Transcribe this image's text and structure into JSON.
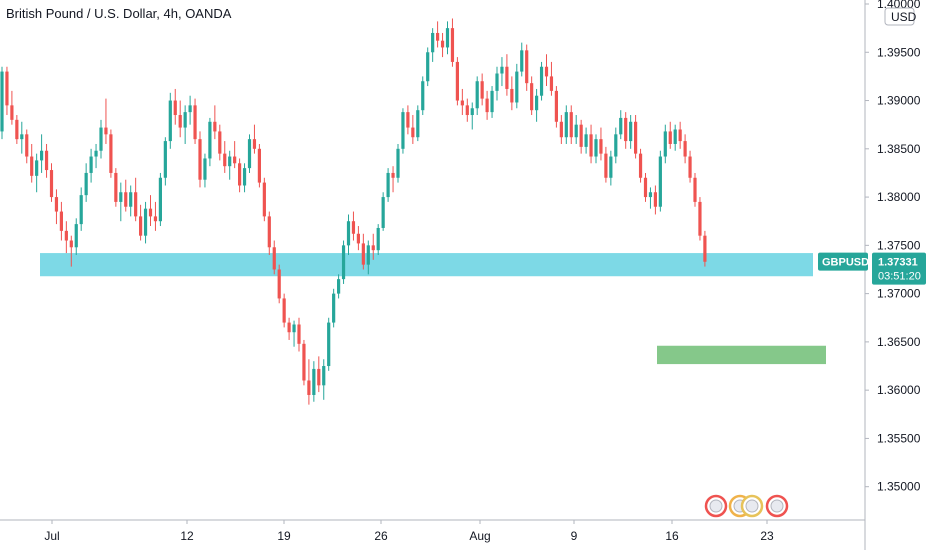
{
  "chart_data": {
    "type": "candlestick",
    "title": "British Pound / U.S. Dollar, 4h, OANDA",
    "symbol": "GBPUSD",
    "currency": "USD",
    "last_price": "1.37331",
    "countdown": "03:51:20",
    "y_ticks": [
      "1.40000",
      "1.39500",
      "1.39000",
      "1.38500",
      "1.38000",
      "1.37500",
      "1.37000",
      "1.36500",
      "1.36000",
      "1.35500",
      "1.35000"
    ],
    "ylim": [
      1.348,
      1.4
    ],
    "x_ticks": [
      "Jul",
      "12",
      "19",
      "26",
      "Aug",
      "9",
      "16",
      "23"
    ],
    "colors": {
      "up": "#26a69a",
      "down": "#ef5350",
      "last": "#26a69a"
    },
    "candles": [
      [
        1.3868,
        1.3935,
        1.386,
        1.393
      ],
      [
        1.393,
        1.3935,
        1.3885,
        1.3895
      ],
      [
        1.3895,
        1.391,
        1.3875,
        1.388
      ],
      [
        1.388,
        1.3885,
        1.3855,
        1.386
      ],
      [
        1.386,
        1.3878,
        1.3845,
        1.3865
      ],
      [
        1.3865,
        1.387,
        1.3835,
        1.3842
      ],
      [
        1.3842,
        1.3855,
        1.3815,
        1.3822
      ],
      [
        1.3822,
        1.3845,
        1.3805,
        1.3838
      ],
      [
        1.3838,
        1.3865,
        1.3825,
        1.3848
      ],
      [
        1.3848,
        1.3855,
        1.382,
        1.3828
      ],
      [
        1.3828,
        1.3835,
        1.3795,
        1.38
      ],
      [
        1.38,
        1.3808,
        1.3772,
        1.3785
      ],
      [
        1.3785,
        1.3795,
        1.3755,
        1.3765
      ],
      [
        1.3765,
        1.3775,
        1.3742,
        1.3755
      ],
      [
        1.3755,
        1.376,
        1.3728,
        1.3748
      ],
      [
        1.3748,
        1.3778,
        1.374,
        1.3772
      ],
      [
        1.3772,
        1.381,
        1.3765,
        1.3802
      ],
      [
        1.3802,
        1.3835,
        1.3795,
        1.3825
      ],
      [
        1.3825,
        1.385,
        1.3815,
        1.3842
      ],
      [
        1.3842,
        1.3855,
        1.383,
        1.3848
      ],
      [
        1.3848,
        1.388,
        1.384,
        1.3872
      ],
      [
        1.3872,
        1.3902,
        1.3855,
        1.3865
      ],
      [
        1.3865,
        1.387,
        1.382,
        1.3825
      ],
      [
        1.3825,
        1.383,
        1.379,
        1.3795
      ],
      [
        1.3795,
        1.3815,
        1.3775,
        1.3805
      ],
      [
        1.3805,
        1.3818,
        1.3785,
        1.379
      ],
      [
        1.379,
        1.3812,
        1.378,
        1.3805
      ],
      [
        1.3805,
        1.382,
        1.3775,
        1.378
      ],
      [
        1.378,
        1.3792,
        1.3755,
        1.376
      ],
      [
        1.376,
        1.3795,
        1.3752,
        1.3788
      ],
      [
        1.3788,
        1.3802,
        1.377,
        1.378
      ],
      [
        1.378,
        1.3795,
        1.3765,
        1.3775
      ],
      [
        1.3775,
        1.3825,
        1.377,
        1.382
      ],
      [
        1.382,
        1.3862,
        1.3812,
        1.3858
      ],
      [
        1.3858,
        1.3908,
        1.385,
        1.39
      ],
      [
        1.39,
        1.3912,
        1.3875,
        1.3885
      ],
      [
        1.3885,
        1.39,
        1.3862,
        1.3872
      ],
      [
        1.3872,
        1.3895,
        1.3855,
        1.3888
      ],
      [
        1.3888,
        1.3905,
        1.3875,
        1.3895
      ],
      [
        1.3895,
        1.3902,
        1.3855,
        1.386
      ],
      [
        1.386,
        1.3868,
        1.381,
        1.3818
      ],
      [
        1.3818,
        1.3845,
        1.381,
        1.384
      ],
      [
        1.384,
        1.3882,
        1.3832,
        1.3878
      ],
      [
        1.3878,
        1.3895,
        1.386,
        1.3868
      ],
      [
        1.3868,
        1.3875,
        1.3838,
        1.3845
      ],
      [
        1.3845,
        1.3858,
        1.3825,
        1.3832
      ],
      [
        1.3832,
        1.3848,
        1.3818,
        1.3842
      ],
      [
        1.3842,
        1.3858,
        1.383,
        1.3835
      ],
      [
        1.3835,
        1.384,
        1.3805,
        1.3812
      ],
      [
        1.3812,
        1.3835,
        1.3805,
        1.383
      ],
      [
        1.383,
        1.3865,
        1.3825,
        1.386
      ],
      [
        1.386,
        1.3875,
        1.3845,
        1.385
      ],
      [
        1.385,
        1.3855,
        1.381,
        1.3815
      ],
      [
        1.3815,
        1.382,
        1.3775,
        1.378
      ],
      [
        1.378,
        1.3785,
        1.374,
        1.3748
      ],
      [
        1.3748,
        1.3755,
        1.372,
        1.3725
      ],
      [
        1.3725,
        1.373,
        1.369,
        1.3695
      ],
      [
        1.3695,
        1.37,
        1.3665,
        1.367
      ],
      [
        1.367,
        1.3675,
        1.3652,
        1.366
      ],
      [
        1.366,
        1.3672,
        1.3645,
        1.3668
      ],
      [
        1.3668,
        1.3675,
        1.364,
        1.3648
      ],
      [
        1.3648,
        1.3652,
        1.3605,
        1.361
      ],
      [
        1.361,
        1.3632,
        1.3585,
        1.3595
      ],
      [
        1.3595,
        1.363,
        1.3588,
        1.3622
      ],
      [
        1.3622,
        1.3635,
        1.3598,
        1.3605
      ],
      [
        1.3605,
        1.3632,
        1.359,
        1.3625
      ],
      [
        1.3625,
        1.3675,
        1.362,
        1.367
      ],
      [
        1.367,
        1.3705,
        1.3665,
        1.37
      ],
      [
        1.37,
        1.372,
        1.3695,
        1.3715
      ],
      [
        1.3715,
        1.3755,
        1.371,
        1.375
      ],
      [
        1.375,
        1.3782,
        1.374,
        1.3775
      ],
      [
        1.3775,
        1.3785,
        1.3755,
        1.3762
      ],
      [
        1.3762,
        1.377,
        1.3745,
        1.3752
      ],
      [
        1.3752,
        1.3762,
        1.3725,
        1.373
      ],
      [
        1.373,
        1.3755,
        1.372,
        1.375
      ],
      [
        1.375,
        1.3762,
        1.3735,
        1.3745
      ],
      [
        1.3745,
        1.3772,
        1.374,
        1.3768
      ],
      [
        1.3768,
        1.3805,
        1.3765,
        1.38
      ],
      [
        1.38,
        1.383,
        1.3795,
        1.3825
      ],
      [
        1.3825,
        1.3832,
        1.3805,
        1.382
      ],
      [
        1.382,
        1.3855,
        1.3815,
        1.385
      ],
      [
        1.385,
        1.3892,
        1.3845,
        1.3888
      ],
      [
        1.3888,
        1.3895,
        1.3865,
        1.3872
      ],
      [
        1.3872,
        1.3885,
        1.3855,
        1.3862
      ],
      [
        1.3862,
        1.3895,
        1.3858,
        1.389
      ],
      [
        1.389,
        1.3925,
        1.3885,
        1.392
      ],
      [
        1.392,
        1.3955,
        1.3915,
        1.395
      ],
      [
        1.395,
        1.3975,
        1.394,
        1.397
      ],
      [
        1.397,
        1.3982,
        1.3955,
        1.3962
      ],
      [
        1.3962,
        1.397,
        1.3945,
        1.3955
      ],
      [
        1.3955,
        1.3982,
        1.3948,
        1.3975
      ],
      [
        1.3975,
        1.3985,
        1.3935,
        1.394
      ],
      [
        1.394,
        1.3945,
        1.3895,
        1.39
      ],
      [
        1.39,
        1.3912,
        1.3885,
        1.3895
      ],
      [
        1.3895,
        1.3902,
        1.3878,
        1.3885
      ],
      [
        1.3885,
        1.3898,
        1.387,
        1.3892
      ],
      [
        1.3892,
        1.3925,
        1.3885,
        1.392
      ],
      [
        1.392,
        1.3928,
        1.3895,
        1.3902
      ],
      [
        1.3902,
        1.391,
        1.388,
        1.3888
      ],
      [
        1.3888,
        1.3915,
        1.3882,
        1.391
      ],
      [
        1.391,
        1.3935,
        1.39,
        1.3928
      ],
      [
        1.3928,
        1.3945,
        1.3915,
        1.3935
      ],
      [
        1.3935,
        1.3948,
        1.3905,
        1.3912
      ],
      [
        1.3912,
        1.3925,
        1.389,
        1.3898
      ],
      [
        1.3898,
        1.3938,
        1.3892,
        1.393
      ],
      [
        1.393,
        1.396,
        1.3925,
        1.3952
      ],
      [
        1.3952,
        1.3958,
        1.391,
        1.3918
      ],
      [
        1.3918,
        1.3925,
        1.3885,
        1.389
      ],
      [
        1.389,
        1.3912,
        1.3878,
        1.3905
      ],
      [
        1.3905,
        1.394,
        1.39,
        1.3935
      ],
      [
        1.3935,
        1.3948,
        1.3915,
        1.3925
      ],
      [
        1.3925,
        1.394,
        1.3905,
        1.391
      ],
      [
        1.391,
        1.3915,
        1.3872,
        1.3878
      ],
      [
        1.3878,
        1.3885,
        1.3855,
        1.3862
      ],
      [
        1.3862,
        1.3895,
        1.3855,
        1.3888
      ],
      [
        1.3888,
        1.3895,
        1.3855,
        1.3862
      ],
      [
        1.3862,
        1.3885,
        1.3855,
        1.3875
      ],
      [
        1.3875,
        1.388,
        1.3845,
        1.3852
      ],
      [
        1.3852,
        1.3872,
        1.3845,
        1.3865
      ],
      [
        1.3865,
        1.3875,
        1.3835,
        1.3842
      ],
      [
        1.3842,
        1.3865,
        1.3835,
        1.386
      ],
      [
        1.386,
        1.3872,
        1.3838,
        1.3845
      ],
      [
        1.3845,
        1.3852,
        1.3815,
        1.382
      ],
      [
        1.382,
        1.3848,
        1.3812,
        1.3842
      ],
      [
        1.3842,
        1.3872,
        1.3835,
        1.3865
      ],
      [
        1.3865,
        1.389,
        1.386,
        1.3882
      ],
      [
        1.3882,
        1.3888,
        1.385,
        1.3858
      ],
      [
        1.3858,
        1.3885,
        1.385,
        1.3878
      ],
      [
        1.3878,
        1.3885,
        1.384,
        1.3845
      ],
      [
        1.3845,
        1.385,
        1.3815,
        1.382
      ],
      [
        1.382,
        1.3825,
        1.3795,
        1.38
      ],
      [
        1.38,
        1.381,
        1.3788,
        1.3805
      ],
      [
        1.3805,
        1.3812,
        1.3782,
        1.379
      ],
      [
        1.379,
        1.3848,
        1.3785,
        1.3842
      ],
      [
        1.3842,
        1.3875,
        1.3835,
        1.3868
      ],
      [
        1.3868,
        1.3878,
        1.385,
        1.3855
      ],
      [
        1.3855,
        1.3875,
        1.3848,
        1.387
      ],
      [
        1.387,
        1.3878,
        1.385,
        1.3858
      ],
      [
        1.3858,
        1.3865,
        1.3835,
        1.3842
      ],
      [
        1.3842,
        1.3848,
        1.3815,
        1.382
      ],
      [
        1.382,
        1.3825,
        1.379,
        1.3795
      ],
      [
        1.3795,
        1.38,
        1.3755,
        1.376
      ],
      [
        1.376,
        1.3765,
        1.3728,
        1.3733
      ]
    ],
    "zones": [
      {
        "label": "support-zone",
        "color": "#7dd9e6",
        "from_candle": 0,
        "to_date_index": 178,
        "y_low": 1.3718,
        "y_high": 1.3742
      },
      {
        "label": "target-zone",
        "color": "#85c88a",
        "from_candle": 148,
        "to_date_index": 178,
        "y_low": 1.3627,
        "y_high": 1.3646
      }
    ]
  }
}
